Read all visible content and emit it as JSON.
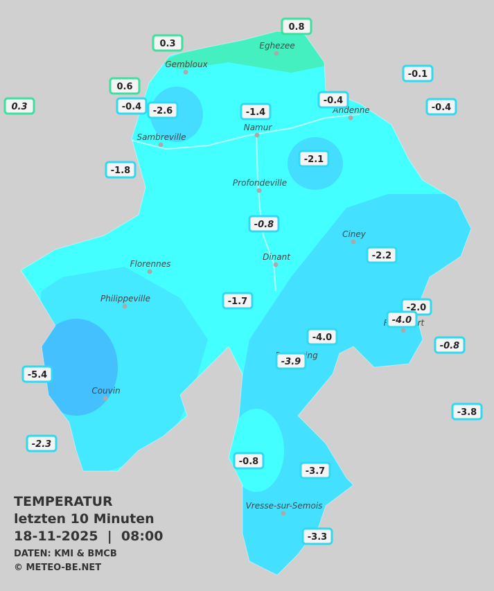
{
  "title": {
    "line1": "TEMPERATUR",
    "line2": "letzten 10 Minuten",
    "line3": "18-11-2025  |  08:00",
    "source": "DATEN: KMI & BMCB",
    "copyright": "© METEO-BE.NET"
  },
  "cities": [
    "Eghezee",
    "Gembloux",
    "Andenne",
    "Namur",
    "Sambreville",
    "Profondeville",
    "Ciney",
    "Dinant",
    "Florennes",
    "Philippeville",
    "Rochefort",
    "Beauraing",
    "Couvin",
    "Vresse-sur-Semois"
  ],
  "stations": [
    {
      "label": "0.8",
      "color": "#3ee0a0"
    },
    {
      "label": "0.3",
      "color": "#3ee0a0"
    },
    {
      "label": "0.6",
      "color": "#3ee0a0"
    },
    {
      "label": "0.3",
      "color": "#3ee0a0",
      "italic": true
    },
    {
      "label": "-0.4",
      "color": "#30d8f0"
    },
    {
      "label": "-2.6",
      "color": "#30d8f0"
    },
    {
      "label": "-1.4",
      "color": "#30d8f0"
    },
    {
      "label": "-0.4",
      "color": "#30d8f0"
    },
    {
      "label": "-0.1",
      "color": "#30d8f0"
    },
    {
      "label": "-0.4",
      "color": "#30d8f0"
    },
    {
      "label": "-2.1",
      "color": "#30d8f0"
    },
    {
      "label": "-1.8",
      "color": "#30d8f0"
    },
    {
      "label": "-0.8",
      "color": "#30d8f0",
      "italic": true
    },
    {
      "label": "-2.2",
      "color": "#30d8f0"
    },
    {
      "label": "-1.7",
      "color": "#30d8f0"
    },
    {
      "label": "-2.0",
      "color": "#30d8f0"
    },
    {
      "label": "-4.0",
      "color": "#30d8f0",
      "italic": true
    },
    {
      "label": "-4.0",
      "color": "#30d8f0"
    },
    {
      "label": "-0.8",
      "color": "#30d8f0",
      "italic": true
    },
    {
      "label": "-3.9",
      "color": "#30d8f0",
      "italic": true
    },
    {
      "label": "-5.4",
      "color": "#30d8f0"
    },
    {
      "label": "-3.8",
      "color": "#30d8f0"
    },
    {
      "label": "-2.3",
      "color": "#30d8f0",
      "italic": true
    },
    {
      "label": "-0.8",
      "color": "#30d8f0"
    },
    {
      "label": "-3.7",
      "color": "#30d8f0"
    },
    {
      "label": "-3.3",
      "color": "#30d8f0"
    }
  ]
}
